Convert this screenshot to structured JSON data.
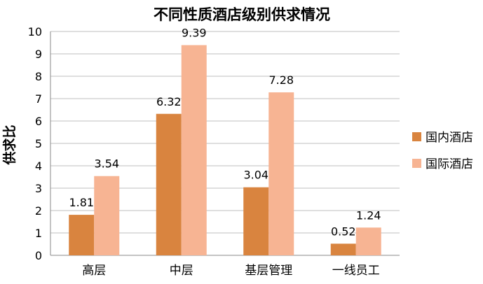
{
  "chart_data": {
    "type": "bar",
    "title": "不同性质酒店级别供求情况",
    "xlabel": "",
    "ylabel": "供求比",
    "ylim": [
      0,
      10
    ],
    "yticks": [
      0,
      1,
      2,
      3,
      4,
      5,
      6,
      7,
      8,
      9,
      10
    ],
    "grid": true,
    "legend": "right",
    "categories": [
      "高层",
      "中层",
      "基层管理",
      "一线员工"
    ],
    "series": [
      {
        "name": "国内酒店",
        "values": [
          1.81,
          6.32,
          3.04,
          0.52
        ],
        "color": "#D9843F"
      },
      {
        "name": "国际酒店",
        "values": [
          3.54,
          9.39,
          7.28,
          1.24
        ],
        "color": "#F7B493"
      }
    ]
  }
}
